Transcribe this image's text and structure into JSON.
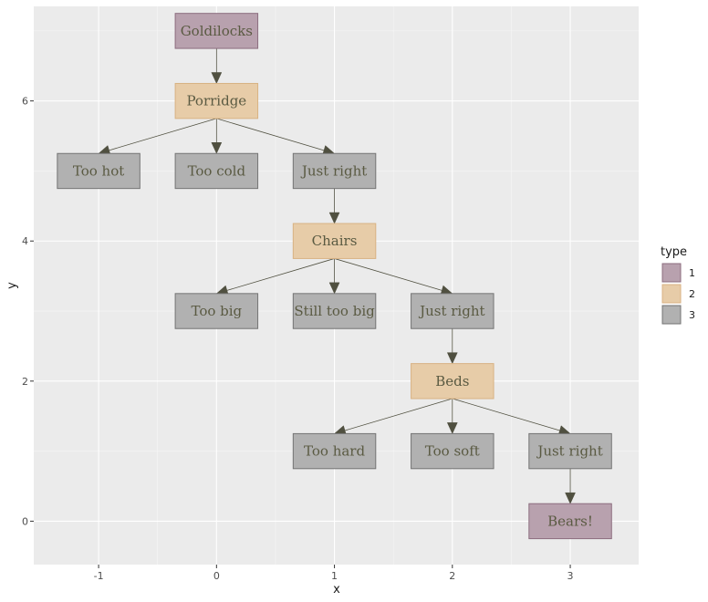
{
  "axes": {
    "xlabel": "x",
    "ylabel": "y",
    "xlim": [
      -1.55,
      3.58
    ],
    "ylim": [
      -0.62,
      7.35
    ],
    "xticks": [
      -1,
      0,
      1,
      2,
      3
    ],
    "yticks": [
      0,
      2,
      4,
      6
    ],
    "xtick_labels": [
      "-1",
      "0",
      "1",
      "2",
      "3"
    ],
    "ytick_labels": [
      "0",
      "2",
      "4",
      "6"
    ],
    "minor_xbreaks": [
      -0.5,
      0.5,
      1.5,
      2.5
    ],
    "minor_ybreaks": [
      1,
      3,
      5,
      7
    ],
    "grid": true,
    "panel_background": "#ebebeb"
  },
  "legend": {
    "title": "type",
    "position": "right",
    "entries": [
      {
        "label": "1",
        "color": "#b8a1ae",
        "border": "#8c6d7f"
      },
      {
        "label": "2",
        "color": "#e7cca8",
        "border": "#d8b283"
      },
      {
        "label": "3",
        "color": "#b1b1b1",
        "border": "#747474"
      }
    ]
  },
  "node_box": {
    "half_width": 0.35,
    "half_height": 0.25
  },
  "nodes": [
    {
      "id": "goldilocks",
      "label": "Goldilocks",
      "x": 0,
      "y": 7,
      "type": "1"
    },
    {
      "id": "porridge",
      "label": "Porridge",
      "x": 0,
      "y": 6,
      "type": "2"
    },
    {
      "id": "too-hot",
      "label": "Too hot",
      "x": -1,
      "y": 5,
      "type": "3"
    },
    {
      "id": "too-cold",
      "label": "Too cold",
      "x": 0,
      "y": 5,
      "type": "3"
    },
    {
      "id": "just-right-1",
      "label": "Just right",
      "x": 1,
      "y": 5,
      "type": "3"
    },
    {
      "id": "chairs",
      "label": "Chairs",
      "x": 1,
      "y": 4,
      "type": "2"
    },
    {
      "id": "too-big",
      "label": "Too big",
      "x": 0,
      "y": 3,
      "type": "3"
    },
    {
      "id": "still-too-big",
      "label": "Still too big",
      "x": 1,
      "y": 3,
      "type": "3"
    },
    {
      "id": "just-right-2",
      "label": "Just right",
      "x": 2,
      "y": 3,
      "type": "3"
    },
    {
      "id": "beds",
      "label": "Beds",
      "x": 2,
      "y": 2,
      "type": "2"
    },
    {
      "id": "too-hard",
      "label": "Too hard",
      "x": 1,
      "y": 1,
      "type": "3"
    },
    {
      "id": "too-soft",
      "label": "Too soft",
      "x": 2,
      "y": 1,
      "type": "3"
    },
    {
      "id": "just-right-3",
      "label": "Just right",
      "x": 3,
      "y": 1,
      "type": "3"
    },
    {
      "id": "bears",
      "label": "Bears!",
      "x": 3,
      "y": 0,
      "type": "1"
    }
  ],
  "edges": [
    {
      "from": "goldilocks",
      "to": "porridge"
    },
    {
      "from": "porridge",
      "to": "too-hot"
    },
    {
      "from": "porridge",
      "to": "too-cold"
    },
    {
      "from": "porridge",
      "to": "just-right-1"
    },
    {
      "from": "just-right-1",
      "to": "chairs"
    },
    {
      "from": "chairs",
      "to": "too-big"
    },
    {
      "from": "chairs",
      "to": "still-too-big"
    },
    {
      "from": "chairs",
      "to": "just-right-2"
    },
    {
      "from": "just-right-2",
      "to": "beds"
    },
    {
      "from": "beds",
      "to": "too-hard"
    },
    {
      "from": "beds",
      "to": "too-soft"
    },
    {
      "from": "beds",
      "to": "just-right-3"
    },
    {
      "from": "just-right-3",
      "to": "bears"
    }
  ],
  "edge_color": "#505040"
}
